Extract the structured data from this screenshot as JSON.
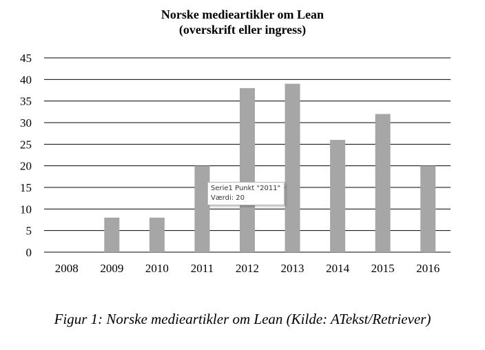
{
  "chart_data": {
    "type": "bar",
    "title": "Norske medieartikler om Lean",
    "subtitle": "(overskrift eller ingress)",
    "categories": [
      "2008",
      "2009",
      "2010",
      "2011",
      "2012",
      "2013",
      "2014",
      "2015",
      "2016"
    ],
    "values": [
      0,
      8,
      8,
      20,
      38,
      39,
      26,
      32,
      20
    ],
    "ylim": [
      0,
      45
    ],
    "yticks": [
      0,
      5,
      10,
      15,
      20,
      25,
      30,
      35,
      40,
      45
    ],
    "grid": true,
    "legend": "none",
    "bar_color": "#a6a6a6",
    "grid_color": "#000000"
  },
  "tooltip": {
    "line1": "Serie1 Punkt \"2011\"",
    "line2": "Værdi: 20"
  },
  "caption": "Figur 1: Norske medieartikler om Lean (Kilde: ATekst/Retriever)"
}
